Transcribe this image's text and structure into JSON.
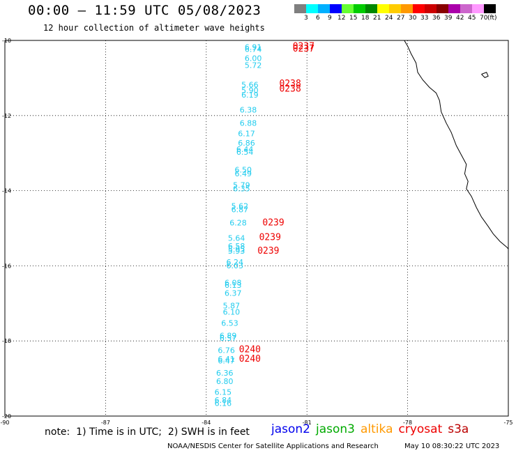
{
  "header": {
    "title": "00:00 — 11:59 UTC 05/08/2023",
    "subtitle": "12 hour collection of altimeter wave heights"
  },
  "legend": {
    "colors": [
      "#7f7f7f",
      "#00ffff",
      "#00b0ff",
      "#0000ff",
      "#66ff33",
      "#00cc00",
      "#008800",
      "#ffff00",
      "#ffcc00",
      "#ff9900",
      "#ff0000",
      "#cc0000",
      "#880000",
      "#aa00aa",
      "#cc66cc",
      "#ff99ff",
      "#000000"
    ],
    "labels": [
      "3",
      "6",
      "9",
      "12",
      "15",
      "18",
      "21",
      "24",
      "27",
      "30",
      "33",
      "36",
      "39",
      "42",
      "45",
      "70",
      "(ft)"
    ]
  },
  "map": {
    "lat_labels": [
      "-10",
      "-12",
      "-14",
      "-16",
      "-18",
      "-20"
    ],
    "lon_labels": [
      "-90",
      "-87",
      "-84",
      "-81",
      "-78",
      "-75"
    ],
    "lon_range": [
      -90,
      -75
    ],
    "lat_range": [
      -20,
      -10
    ],
    "grid": "dotted",
    "swh_color": "#22ccee",
    "time_color": "#ee0000",
    "swh_values": [
      {
        "v": "6.91",
        "lon": -82.6,
        "lat": -10.25
      },
      {
        "v": "6.74",
        "lon": -82.6,
        "lat": -10.31
      },
      {
        "v": "6.00",
        "lon": -82.6,
        "lat": -10.55
      },
      {
        "v": "5.72",
        "lon": -82.6,
        "lat": -10.73
      },
      {
        "v": "5.66",
        "lon": -82.7,
        "lat": -11.25
      },
      {
        "v": "5.90",
        "lon": -82.7,
        "lat": -11.4
      },
      {
        "v": "6.19",
        "lon": -82.7,
        "lat": -11.52
      },
      {
        "v": "6.38",
        "lon": -82.75,
        "lat": -11.92
      },
      {
        "v": "6.88",
        "lon": -82.75,
        "lat": -12.27
      },
      {
        "v": "6.17",
        "lon": -82.8,
        "lat": -12.55
      },
      {
        "v": "6.86",
        "lon": -82.8,
        "lat": -12.8
      },
      {
        "v": "6.44",
        "lon": -82.85,
        "lat": -12.97
      },
      {
        "v": "6.54",
        "lon": -82.85,
        "lat": -13.04
      },
      {
        "v": "6.50",
        "lon": -82.9,
        "lat": -13.52
      },
      {
        "v": "6.49",
        "lon": -82.9,
        "lat": -13.62
      },
      {
        "v": "5.79",
        "lon": -82.95,
        "lat": -13.92
      },
      {
        "v": "6.35",
        "lon": -82.95,
        "lat": -14.02
      },
      {
        "v": "5.62",
        "lon": -83.0,
        "lat": -14.48
      },
      {
        "v": "6.87",
        "lon": -83.0,
        "lat": -14.57
      },
      {
        "v": "6.28",
        "lon": -83.05,
        "lat": -14.93
      },
      {
        "v": "5.64",
        "lon": -83.1,
        "lat": -15.33
      },
      {
        "v": "6.58",
        "lon": -83.1,
        "lat": -15.55
      },
      {
        "v": "5.95",
        "lon": -83.1,
        "lat": -15.63
      },
      {
        "v": "5.93",
        "lon": -83.1,
        "lat": -15.68
      },
      {
        "v": "6.24",
        "lon": -83.15,
        "lat": -15.97
      },
      {
        "v": "6.03",
        "lon": -83.15,
        "lat": -16.07
      },
      {
        "v": "6.08",
        "lon": -83.2,
        "lat": -16.52
      },
      {
        "v": "6.13",
        "lon": -83.2,
        "lat": -16.59
      },
      {
        "v": "6.37",
        "lon": -83.2,
        "lat": -16.8
      },
      {
        "v": "5.87",
        "lon": -83.25,
        "lat": -17.13
      },
      {
        "v": "6.10",
        "lon": -83.25,
        "lat": -17.3
      },
      {
        "v": "6.53",
        "lon": -83.3,
        "lat": -17.6
      },
      {
        "v": "6.89",
        "lon": -83.35,
        "lat": -17.93
      },
      {
        "v": "6.57",
        "lon": -83.35,
        "lat": -18.0
      },
      {
        "v": "6.76",
        "lon": -83.4,
        "lat": -18.32
      },
      {
        "v": "6.41",
        "lon": -83.4,
        "lat": -18.55
      },
      {
        "v": "6.47",
        "lon": -83.4,
        "lat": -18.6
      },
      {
        "v": "6.36",
        "lon": -83.45,
        "lat": -18.92
      },
      {
        "v": "6.80",
        "lon": -83.45,
        "lat": -19.15
      },
      {
        "v": "6.15",
        "lon": -83.5,
        "lat": -19.43
      },
      {
        "v": "6.84",
        "lon": -83.5,
        "lat": -19.65
      },
      {
        "v": "6.16",
        "lon": -83.5,
        "lat": -19.73
      }
    ],
    "time_labels": [
      {
        "v": "0237",
        "lon": -81.1,
        "lat": -10.23
      },
      {
        "v": "0237",
        "lon": -81.1,
        "lat": -10.3
      },
      {
        "v": "0238",
        "lon": -81.5,
        "lat": -11.22
      },
      {
        "v": "0238",
        "lon": -81.5,
        "lat": -11.36
      },
      {
        "v": "0239",
        "lon": -82.0,
        "lat": -14.93
      },
      {
        "v": "0239",
        "lon": -82.1,
        "lat": -15.32
      },
      {
        "v": "0239",
        "lon": -82.15,
        "lat": -15.68
      },
      {
        "v": "0240",
        "lon": -82.7,
        "lat": -18.3
      },
      {
        "v": "0240",
        "lon": -82.7,
        "lat": -18.55
      }
    ],
    "coastline": [
      [
        -78.1,
        -10.0
      ],
      [
        -78.0,
        -10.15
      ],
      [
        -77.9,
        -10.35
      ],
      [
        -77.75,
        -10.6
      ],
      [
        -77.7,
        -10.85
      ],
      [
        -77.55,
        -11.05
      ],
      [
        -77.35,
        -11.25
      ],
      [
        -77.15,
        -11.4
      ],
      [
        -77.05,
        -11.6
      ],
      [
        -77.0,
        -11.9
      ],
      [
        -76.85,
        -12.2
      ],
      [
        -76.7,
        -12.45
      ],
      [
        -76.55,
        -12.8
      ],
      [
        -76.4,
        -13.05
      ],
      [
        -76.25,
        -13.3
      ],
      [
        -76.3,
        -13.55
      ],
      [
        -76.2,
        -13.75
      ],
      [
        -76.25,
        -13.95
      ],
      [
        -76.1,
        -14.15
      ],
      [
        -75.95,
        -14.45
      ],
      [
        -75.8,
        -14.7
      ],
      [
        -75.6,
        -14.95
      ],
      [
        -75.45,
        -15.15
      ],
      [
        -75.25,
        -15.35
      ],
      [
        -75.05,
        -15.5
      ],
      [
        -75.0,
        -15.55
      ]
    ],
    "island": [
      [
        -75.8,
        -10.9
      ],
      [
        -75.65,
        -10.85
      ],
      [
        -75.6,
        -10.95
      ],
      [
        -75.7,
        -10.99
      ],
      [
        -75.8,
        -10.9
      ]
    ]
  },
  "footer": {
    "note": "note:  1) Time is in UTC;  2) SWH is in feet",
    "missions": [
      {
        "name": "jason2",
        "color": "#0000ee"
      },
      {
        "name": "jason3",
        "color": "#00aa00"
      },
      {
        "name": "altika",
        "color": "#ff9900"
      },
      {
        "name": "cryosat",
        "color": "#ee0000"
      },
      {
        "name": "s3a",
        "color": "#bb0000"
      }
    ],
    "credit": "NOAA/NESDIS Center for Satellite Applications and Research",
    "timestamp": "May 10 08:30:22 UTC 2023"
  }
}
